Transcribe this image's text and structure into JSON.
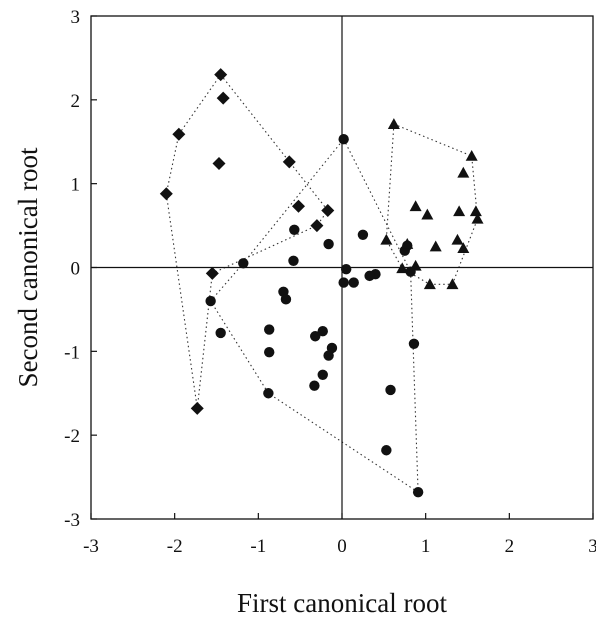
{
  "chart_data": {
    "type": "scatter",
    "xlabel": "First canonical root",
    "ylabel": "Second canonical root",
    "xlim": [
      -3,
      3
    ],
    "ylim": [
      -3,
      3
    ],
    "xticks": [
      "-3",
      "-2",
      "-1",
      "0",
      "1",
      "2",
      "3"
    ],
    "yticks": [
      "3",
      "2",
      "1",
      "0",
      "-1",
      "-2",
      "-3"
    ],
    "zero_lines": true,
    "grid": false,
    "colors": {
      "marker": "#111111"
    },
    "series": [
      {
        "marker": "diamond",
        "points": [
          [
            -1.45,
            2.3
          ],
          [
            -1.42,
            2.02
          ],
          [
            -1.95,
            1.59
          ],
          [
            -1.47,
            1.24
          ],
          [
            -2.1,
            0.88
          ],
          [
            -0.63,
            1.26
          ],
          [
            -0.52,
            0.73
          ],
          [
            -0.3,
            0.5
          ],
          [
            -0.17,
            0.68
          ],
          [
            -1.55,
            -0.07
          ],
          [
            -1.73,
            -1.68
          ]
        ],
        "hull": [
          [
            -1.45,
            2.3
          ],
          [
            -0.17,
            0.68
          ],
          [
            -0.3,
            0.5
          ],
          [
            -1.55,
            -0.07
          ],
          [
            -1.73,
            -1.68
          ],
          [
            -2.1,
            0.88
          ],
          [
            -1.95,
            1.59
          ]
        ]
      },
      {
        "marker": "circle",
        "points": [
          [
            0.02,
            1.53
          ],
          [
            0.25,
            0.39
          ],
          [
            -0.57,
            0.45
          ],
          [
            -0.16,
            0.28
          ],
          [
            -0.58,
            0.08
          ],
          [
            -1.18,
            0.05
          ],
          [
            0.05,
            -0.02
          ],
          [
            0.4,
            -0.08
          ],
          [
            0.33,
            -0.1
          ],
          [
            0.75,
            0.2
          ],
          [
            0.78,
            0.26
          ],
          [
            0.82,
            -0.05
          ],
          [
            0.02,
            -0.18
          ],
          [
            0.14,
            -0.18
          ],
          [
            -1.57,
            -0.4
          ],
          [
            -0.7,
            -0.29
          ],
          [
            -0.67,
            -0.38
          ],
          [
            -1.45,
            -0.78
          ],
          [
            -0.87,
            -0.74
          ],
          [
            -0.23,
            -0.76
          ],
          [
            -0.32,
            -0.82
          ],
          [
            -0.12,
            -0.96
          ],
          [
            -0.16,
            -1.05
          ],
          [
            -0.87,
            -1.01
          ],
          [
            -0.23,
            -1.28
          ],
          [
            -0.33,
            -1.41
          ],
          [
            -0.88,
            -1.5
          ],
          [
            0.58,
            -1.46
          ],
          [
            0.86,
            -0.91
          ],
          [
            0.53,
            -2.18
          ],
          [
            0.91,
            -2.68
          ]
        ],
        "hull": [
          [
            0.02,
            1.53
          ],
          [
            0.82,
            -0.05
          ],
          [
            0.91,
            -2.68
          ],
          [
            -0.88,
            -1.5
          ],
          [
            -1.57,
            -0.4
          ],
          [
            -1.18,
            0.05
          ]
        ]
      },
      {
        "marker": "triangle",
        "points": [
          [
            0.62,
            1.71
          ],
          [
            1.55,
            1.33
          ],
          [
            1.45,
            1.13
          ],
          [
            0.88,
            0.73
          ],
          [
            1.02,
            0.63
          ],
          [
            1.4,
            0.67
          ],
          [
            1.6,
            0.67
          ],
          [
            1.62,
            0.58
          ],
          [
            0.53,
            0.33
          ],
          [
            0.78,
            0.28
          ],
          [
            1.12,
            0.25
          ],
          [
            1.38,
            0.33
          ],
          [
            1.45,
            0.23
          ],
          [
            0.72,
            -0.01
          ],
          [
            0.88,
            0.02
          ],
          [
            1.05,
            -0.2
          ],
          [
            1.32,
            -0.2
          ]
        ],
        "hull": [
          [
            0.62,
            1.71
          ],
          [
            1.55,
            1.33
          ],
          [
            1.62,
            0.58
          ],
          [
            1.32,
            -0.2
          ],
          [
            1.05,
            -0.2
          ],
          [
            0.72,
            -0.01
          ],
          [
            0.53,
            0.33
          ]
        ]
      }
    ]
  }
}
